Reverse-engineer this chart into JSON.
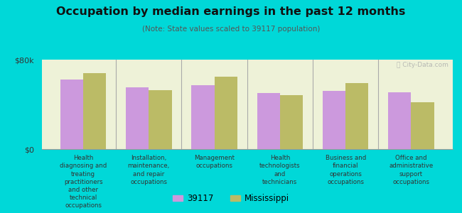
{
  "title": "Occupation by median earnings in the past 12 months",
  "subtitle": "(Note: State values scaled to 39117 population)",
  "background_color": "#00d8d8",
  "plot_bg_color": "#eef2d8",
  "categories": [
    "Health\ndiagnosing and\ntreating\npractitioners\nand other\ntechnical\noccupations",
    "Installation,\nmaintenance,\nand repair\noccupations",
    "Management\noccupations",
    "Health\ntechnologists\nand\ntechnicians",
    "Business and\nfinancial\noperations\noccupations",
    "Office and\nadministrative\nsupport\noccupations"
  ],
  "values_39117": [
    62000,
    55000,
    57000,
    50000,
    52000,
    51000
  ],
  "values_mississippi": [
    68000,
    53000,
    65000,
    48000,
    59000,
    42000
  ],
  "color_39117": "#cc99dd",
  "color_mississippi": "#bbbb66",
  "ylim": [
    0,
    80000
  ],
  "ytick_labels": [
    "$0",
    "$80k"
  ],
  "legend_label_1": "39117",
  "legend_label_2": "Mississippi",
  "bar_width": 0.35,
  "watermark": "ⓘ City-Data.com"
}
